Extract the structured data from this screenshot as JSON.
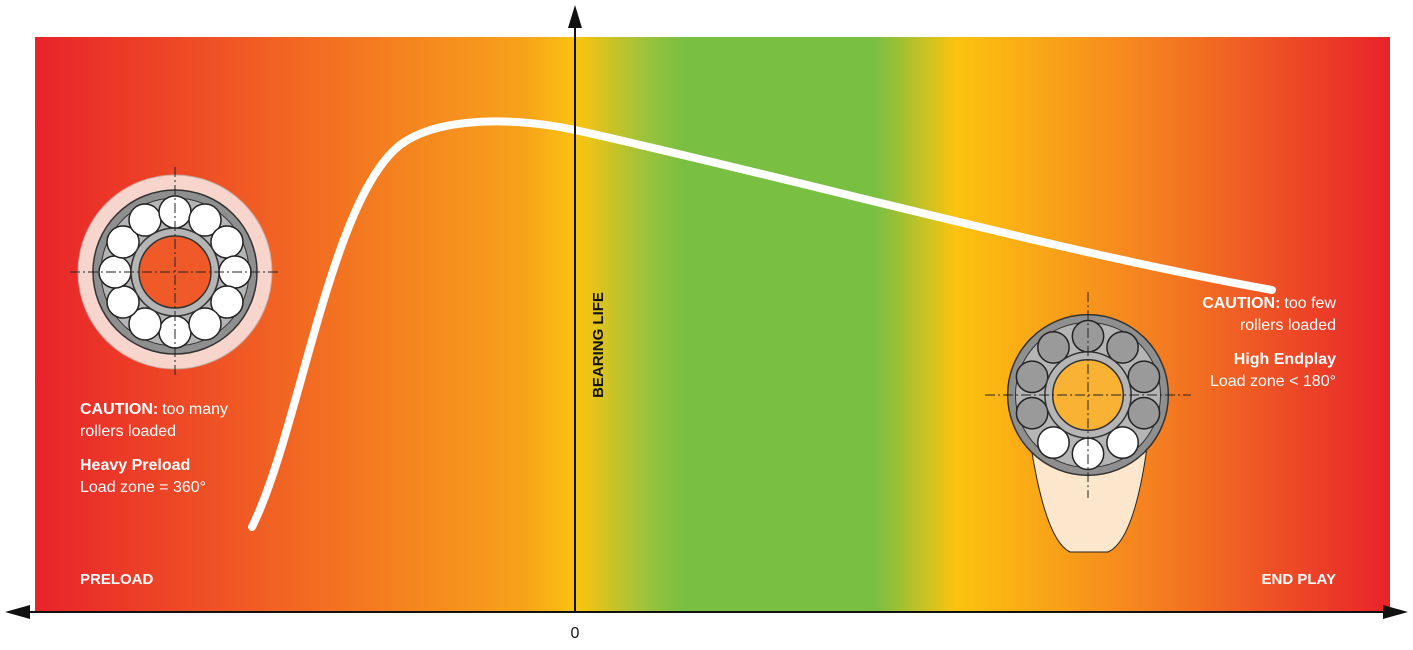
{
  "axes": {
    "y_label": "BEARING LIFE",
    "x_left": "PRELOAD",
    "x_right": "END PLAY",
    "origin": "0"
  },
  "annotations": [
    {
      "caution": "CAUTION:",
      "caution_text": "too many",
      "caution_text2": "rollers loaded",
      "title": "Heavy Preload",
      "detail": "Load zone = 360°"
    },
    {
      "caution": "CAUTION:",
      "caution_text": "too few",
      "caution_text2": "rollers loaded",
      "title": "High Endplay",
      "detail": "Load zone < 180°"
    }
  ]
}
